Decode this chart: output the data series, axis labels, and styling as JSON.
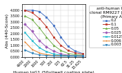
{
  "title": "anti-human IgG1\nclonal RM9227 (ug/mL)\n(Primary Ab)",
  "xlabel": "Human IgG1 (50ul/well coating plate)",
  "ylabel": "Abs (440-Score)",
  "x_labels": [
    "4000",
    "2000",
    "1000",
    "500",
    "250",
    "125",
    "62.5",
    "31.25",
    "15.625"
  ],
  "ylim": [
    0,
    4.5
  ],
  "yticks": [
    0.0,
    0.5,
    1.0,
    1.5,
    2.0,
    2.5,
    3.0,
    3.5,
    4.0
  ],
  "ytick_labels": [
    "0.000",
    "0.500",
    "1.000",
    "1.500",
    "2.000",
    "2.500",
    "3.000",
    "3.500",
    "4.000"
  ],
  "series": [
    {
      "label": "0.2",
      "color": "#4472c4",
      "marker": "o",
      "values": [
        4.0,
        4.0,
        3.9,
        3.4,
        2.7,
        1.7,
        0.9,
        0.5,
        0.3
      ]
    },
    {
      "label": "0.1",
      "color": "#c0392b",
      "marker": "s",
      "values": [
        4.0,
        3.8,
        3.3,
        2.6,
        1.7,
        1.0,
        0.55,
        0.35,
        0.25
      ]
    },
    {
      "label": "0.05",
      "color": "#70ad47",
      "marker": "^",
      "values": [
        3.5,
        3.2,
        2.5,
        1.7,
        1.0,
        0.55,
        0.3,
        0.2,
        0.15
      ]
    },
    {
      "label": "0.025",
      "color": "#9b59b6",
      "marker": "D",
      "values": [
        2.8,
        2.2,
        1.4,
        0.85,
        0.5,
        0.25,
        0.15,
        0.1,
        0.1
      ]
    },
    {
      "label": "0.0125",
      "color": "#00b0c8",
      "marker": "x",
      "values": [
        2.1,
        1.4,
        0.8,
        0.45,
        0.25,
        0.15,
        0.1,
        0.1,
        0.08
      ]
    },
    {
      "label": "0.006",
      "color": "#e67e22",
      "marker": "+",
      "values": [
        1.3,
        0.65,
        0.35,
        0.2,
        0.13,
        0.1,
        0.08,
        0.07,
        0.06
      ]
    },
    {
      "label": "0.003",
      "color": "#2980b9",
      "marker": "v",
      "values": [
        0.6,
        0.32,
        0.18,
        0.12,
        0.09,
        0.07,
        0.06,
        0.06,
        0.05
      ]
    }
  ],
  "legend_fontsize": 4.0,
  "axis_fontsize": 4.5,
  "tick_fontsize": 3.5,
  "title_fontsize": 4.2
}
